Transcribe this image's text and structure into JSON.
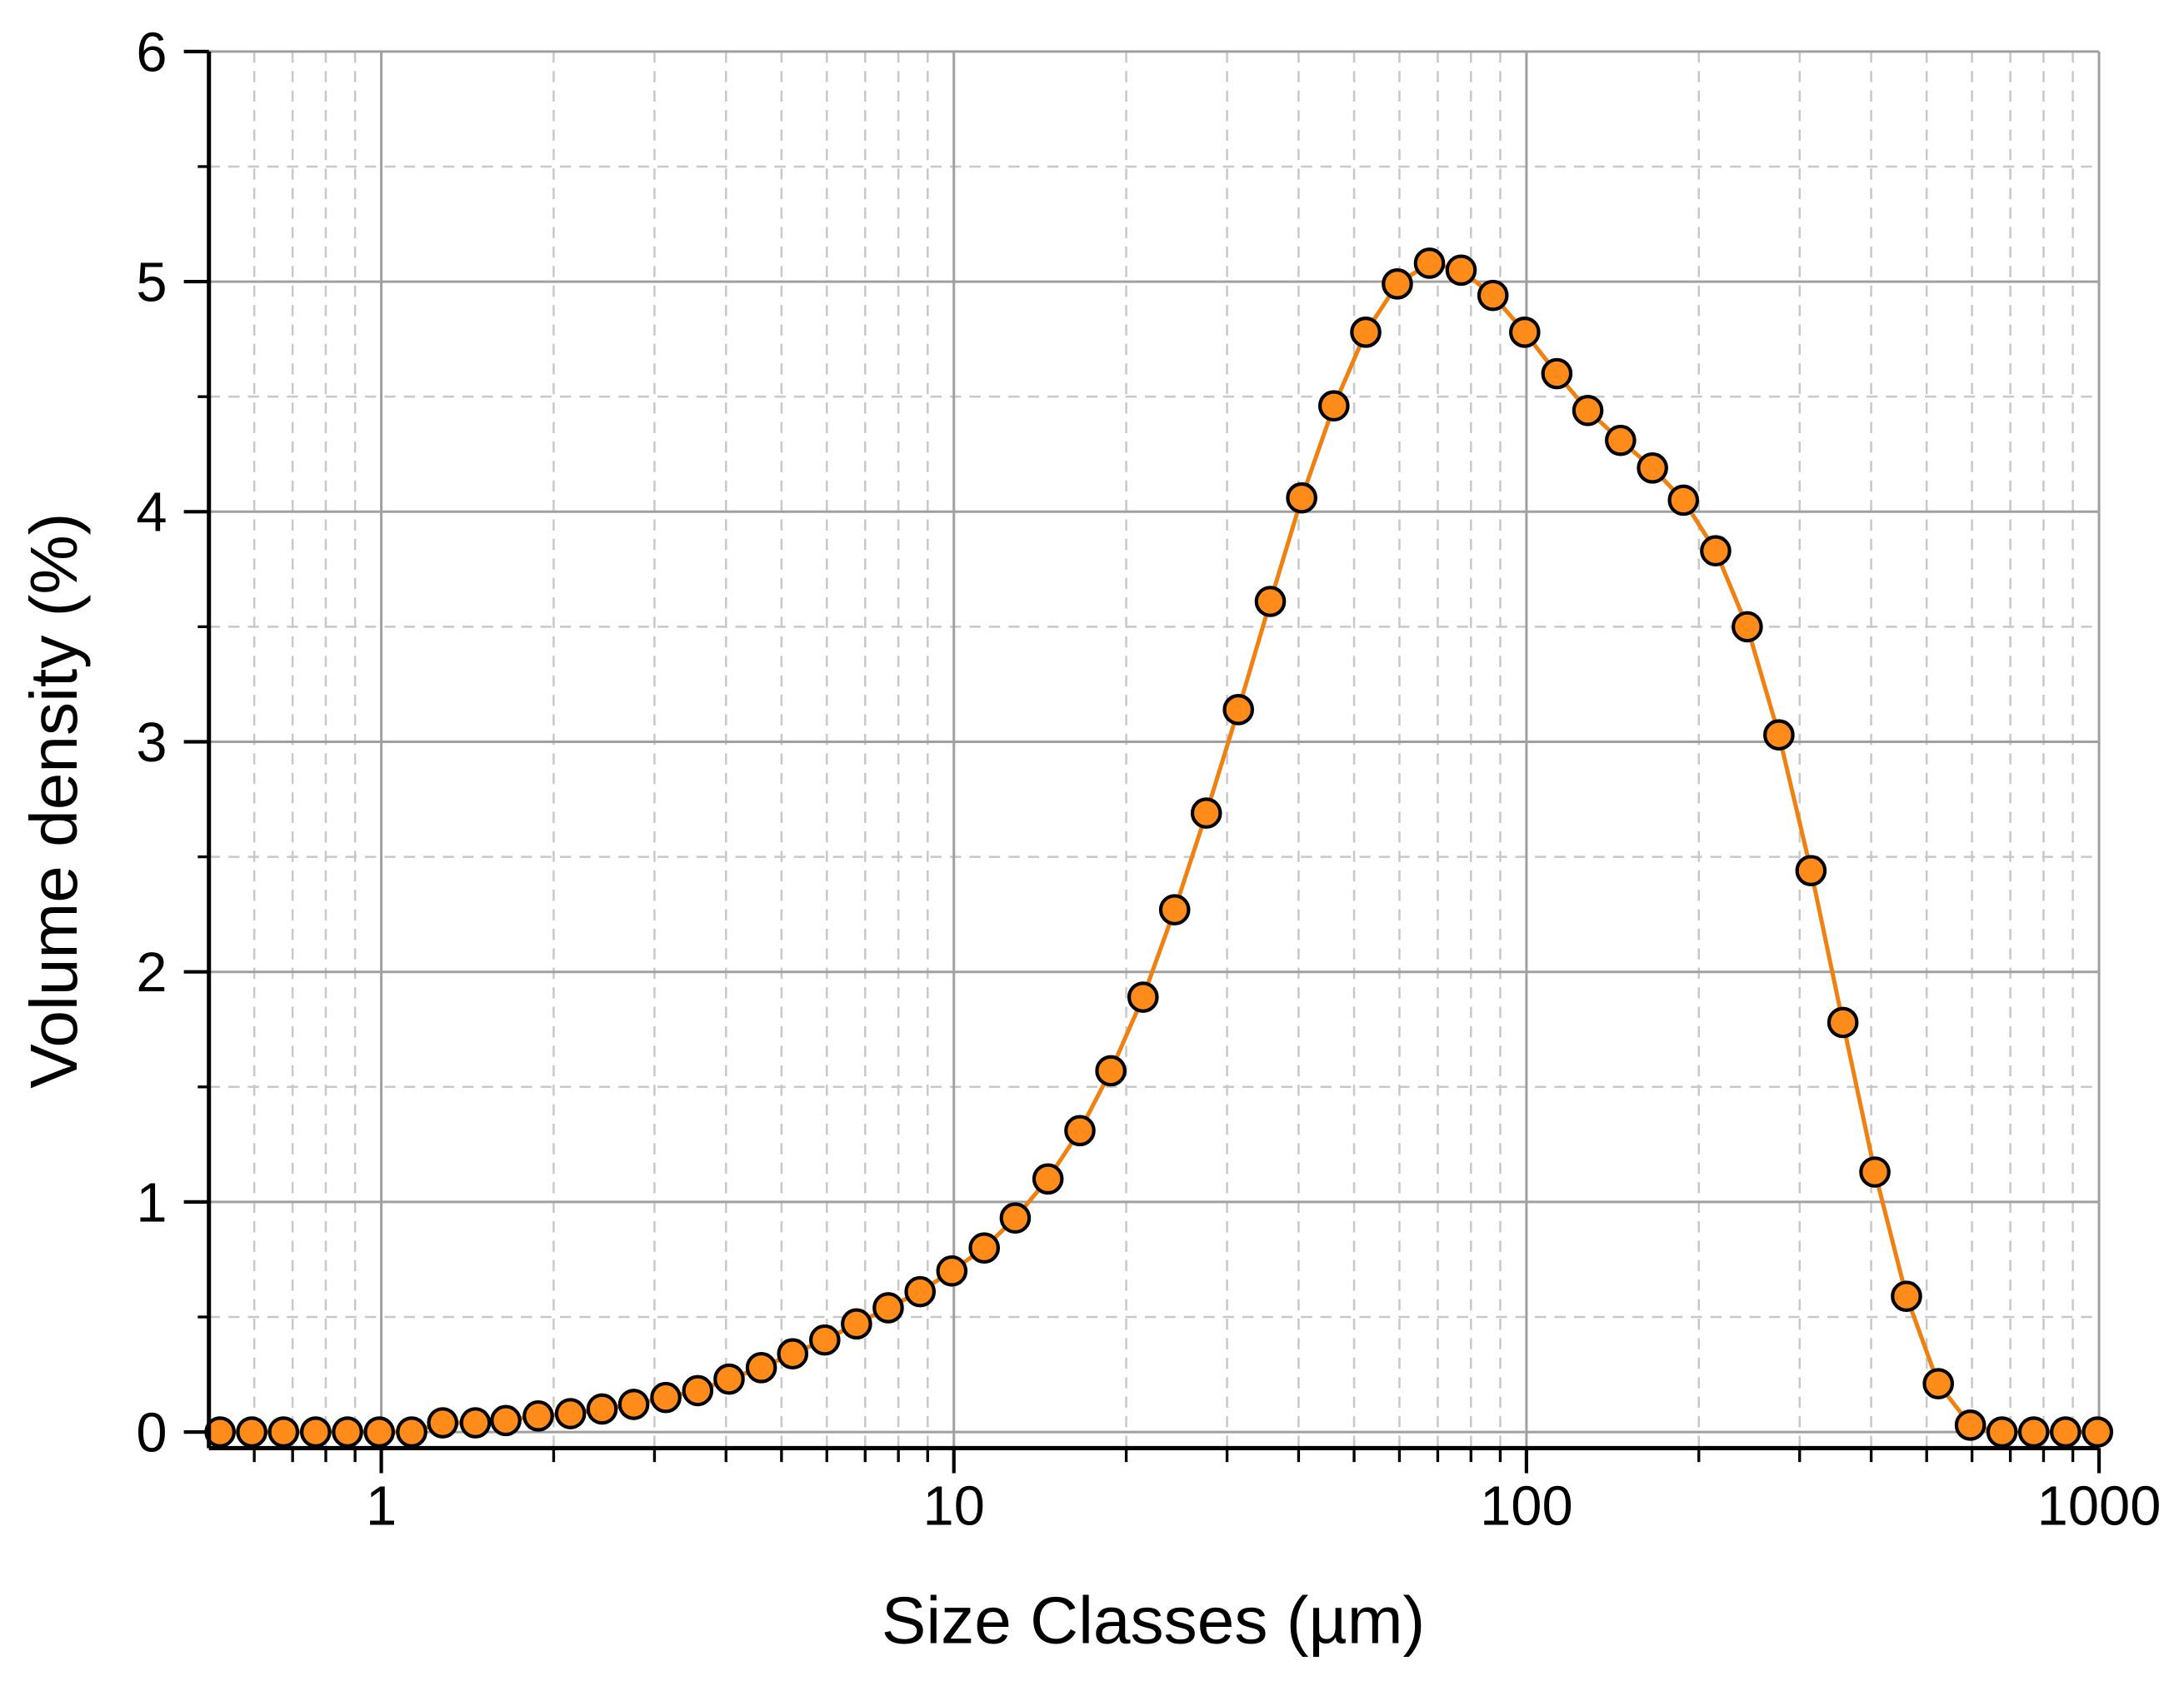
{
  "chart_data": {
    "type": "scatter-line",
    "x_label": "Size Classes (µm)",
    "y_label": "Volume density (%)",
    "x": [
      0.523,
      0.594,
      0.675,
      0.768,
      0.873,
      0.992,
      1.13,
      1.28,
      1.46,
      1.65,
      1.88,
      2.14,
      2.43,
      2.76,
      3.14,
      3.57,
      4.05,
      4.61,
      5.23,
      5.95,
      6.76,
      7.68,
      8.73,
      9.92,
      11.3,
      12.8,
      14.6,
      16.6,
      18.8,
      21.4,
      24.3,
      27.6,
      31.4,
      35.7,
      40.5,
      46.1,
      52.4,
      59.5,
      67.7,
      76.9,
      87.4,
      99.3,
      113,
      128,
      146,
      166,
      188,
      214,
      243,
      276,
      314,
      357,
      406,
      461,
      524,
      596,
      677,
      769,
      874,
      994
    ],
    "series": [
      {
        "color": "#ff8c1a",
        "line_color": "#f08010",
        "values": [
          0,
          0,
          0,
          0,
          0,
          0,
          0,
          0.04,
          0.04,
          0.05,
          0.07,
          0.08,
          0.1,
          0.12,
          0.15,
          0.18,
          0.23,
          0.28,
          0.34,
          0.4,
          0.47,
          0.54,
          0.61,
          0.7,
          0.8,
          0.93,
          1.1,
          1.31,
          1.57,
          1.89,
          2.27,
          2.69,
          3.14,
          3.61,
          4.06,
          4.46,
          4.78,
          4.99,
          5.08,
          5.05,
          4.94,
          4.78,
          4.6,
          4.44,
          4.31,
          4.19,
          4.05,
          3.83,
          3.5,
          3.03,
          2.44,
          1.78,
          1.13,
          0.59,
          0.21,
          0.03,
          0,
          0,
          0,
          0
        ]
      }
    ],
    "xscale": "log",
    "xlim": [
      0.5,
      1000
    ],
    "xticks": [
      1,
      10,
      100,
      1000
    ],
    "ylim": [
      -0.07,
      6
    ],
    "yticks": [
      0,
      1,
      2,
      3,
      4,
      5,
      6
    ],
    "grid": true,
    "minor_grid": true
  }
}
